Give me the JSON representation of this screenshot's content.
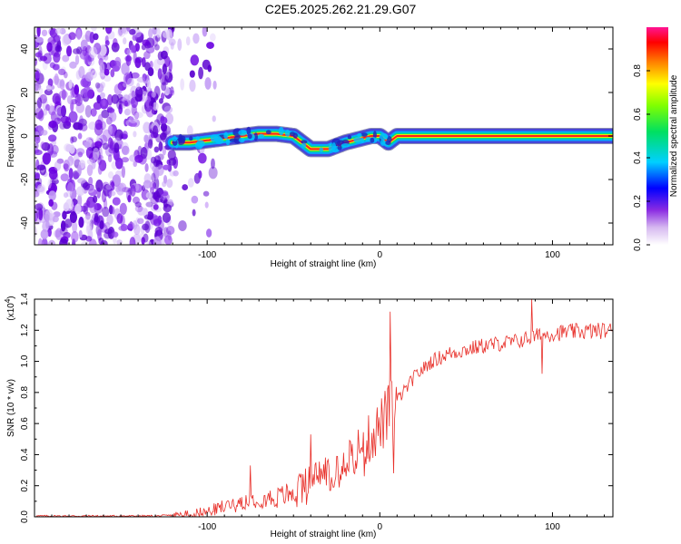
{
  "title": "C2E5.2025.262.21.29.G07",
  "chart_data": [
    {
      "type": "heatmap",
      "name": "spectrogram",
      "xlabel": "Height of straight line (km)",
      "ylabel": "Frequency (Hz)",
      "xlim": [
        -200,
        135
      ],
      "ylim": [
        -50,
        50
      ],
      "xticks": [
        -100,
        0,
        100
      ],
      "yticks": [
        -40,
        -20,
        0,
        20,
        40
      ],
      "colorbar": {
        "label": "Normalized spectral amplitude",
        "range": [
          0,
          1
        ],
        "ticks": [
          "0.0",
          "0.2",
          "0.4",
          "0.6",
          "0.8"
        ]
      },
      "noise_region_x": [
        -200,
        -120
      ],
      "signal_track": {
        "x": [
          -120,
          -110,
          -100,
          -90,
          -80,
          -70,
          -60,
          -50,
          -40,
          -30,
          -20,
          -10,
          -5,
          0,
          5,
          10,
          20,
          50,
          80,
          100,
          135
        ],
        "frequency": [
          -3,
          -3,
          -2,
          -1,
          0,
          1,
          1,
          0,
          -6,
          -6,
          -3,
          -1,
          0,
          0,
          -3,
          0,
          0,
          0,
          0,
          0,
          0
        ]
      }
    },
    {
      "type": "line",
      "name": "snr",
      "xlabel": "Height of straight line (km)",
      "ylabel": "SNR (10 * v/v)",
      "multiplier_label": "(x10",
      "multiplier_exp": "4",
      "multiplier_close": ")",
      "xlim": [
        -200,
        135
      ],
      "ylim": [
        0,
        1.4
      ],
      "xticks": [
        -100,
        0,
        100
      ],
      "yticks": [
        "0.0",
        "0.2",
        "0.4",
        "0.6",
        "0.8",
        "1.0",
        "1.2",
        "1.4"
      ],
      "color": "#e8302a",
      "envelope": {
        "x": [
          -200,
          -130,
          -120,
          -100,
          -90,
          -80,
          -70,
          -60,
          -50,
          -40,
          -30,
          -20,
          -10,
          0,
          5,
          8,
          10,
          15,
          20,
          30,
          40,
          60,
          80,
          90,
          100,
          110,
          135
        ],
        "y": [
          0.005,
          0.005,
          0.01,
          0.03,
          0.07,
          0.1,
          0.12,
          0.12,
          0.16,
          0.25,
          0.3,
          0.38,
          0.45,
          0.58,
          0.66,
          0.7,
          0.75,
          0.82,
          0.9,
          1.0,
          1.05,
          1.1,
          1.13,
          1.16,
          1.18,
          1.19,
          1.2
        ]
      },
      "spikes": [
        {
          "x": -75,
          "y": 0.33
        },
        {
          "x": -40,
          "y": 0.53
        },
        {
          "x": 6,
          "y": 1.32
        },
        {
          "x": 8,
          "y": 0.28
        },
        {
          "x": 88,
          "y": 1.4
        },
        {
          "x": 94,
          "y": 0.92
        }
      ]
    }
  ]
}
